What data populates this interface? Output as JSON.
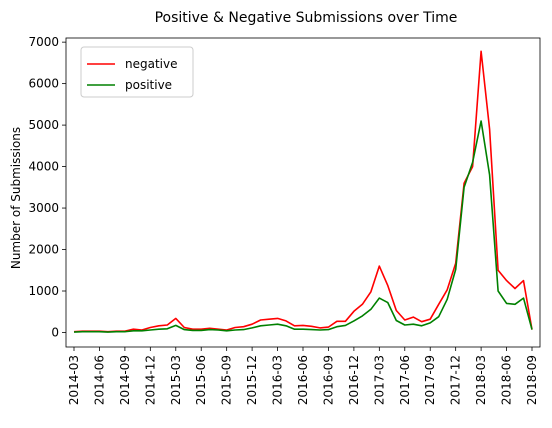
{
  "chart_data": {
    "type": "line",
    "title": "Positive & Negative Submissions over Time",
    "xlabel": "",
    "ylabel": "Number of Submissions",
    "ylim": [
      -350,
      7100
    ],
    "yticks": [
      0,
      1000,
      2000,
      3000,
      4000,
      5000,
      6000,
      7000
    ],
    "xticks": [
      "2014-03",
      "2014-06",
      "2014-09",
      "2014-12",
      "2015-03",
      "2015-06",
      "2015-09",
      "2015-12",
      "2016-03",
      "2016-06",
      "2016-09",
      "2016-12",
      "2017-03",
      "2017-06",
      "2017-09",
      "2017-12",
      "2018-03",
      "2018-06",
      "2018-09"
    ],
    "x": [
      "2014-03",
      "2014-04",
      "2014-05",
      "2014-06",
      "2014-07",
      "2014-08",
      "2014-09",
      "2014-10",
      "2014-11",
      "2014-12",
      "2015-01",
      "2015-02",
      "2015-03",
      "2015-04",
      "2015-05",
      "2015-06",
      "2015-07",
      "2015-08",
      "2015-09",
      "2015-10",
      "2015-11",
      "2015-12",
      "2016-01",
      "2016-02",
      "2016-03",
      "2016-04",
      "2016-05",
      "2016-06",
      "2016-07",
      "2016-08",
      "2016-09",
      "2016-10",
      "2016-11",
      "2016-12",
      "2017-01",
      "2017-02",
      "2017-03",
      "2017-04",
      "2017-05",
      "2017-06",
      "2017-07",
      "2017-08",
      "2017-09",
      "2017-10",
      "2017-11",
      "2017-12",
      "2018-01",
      "2018-02",
      "2018-03",
      "2018-04",
      "2018-05",
      "2018-06",
      "2018-07",
      "2018-08",
      "2018-09"
    ],
    "series": [
      {
        "name": "negative",
        "color": "#ff0000",
        "values": [
          20,
          30,
          30,
          30,
          20,
          30,
          30,
          80,
          60,
          120,
          160,
          180,
          340,
          120,
          80,
          80,
          100,
          80,
          60,
          120,
          140,
          200,
          300,
          320,
          340,
          280,
          160,
          170,
          150,
          110,
          130,
          270,
          270,
          510,
          680,
          980,
          1600,
          1130,
          530,
          300,
          370,
          260,
          320,
          680,
          1030,
          1670,
          3600,
          4000,
          6780,
          4900,
          1500,
          1250,
          1060,
          1250,
          70
        ]
      },
      {
        "name": "positive",
        "color": "#008000",
        "values": [
          10,
          20,
          20,
          20,
          10,
          20,
          20,
          40,
          40,
          60,
          80,
          90,
          170,
          70,
          50,
          50,
          70,
          60,
          40,
          60,
          70,
          110,
          160,
          180,
          200,
          160,
          80,
          80,
          70,
          60,
          70,
          140,
          170,
          280,
          400,
          560,
          830,
          720,
          290,
          180,
          200,
          160,
          230,
          380,
          800,
          1520,
          3500,
          4100,
          5100,
          3800,
          1000,
          700,
          680,
          830,
          70
        ]
      }
    ],
    "legend": "top-left",
    "grid": false
  }
}
